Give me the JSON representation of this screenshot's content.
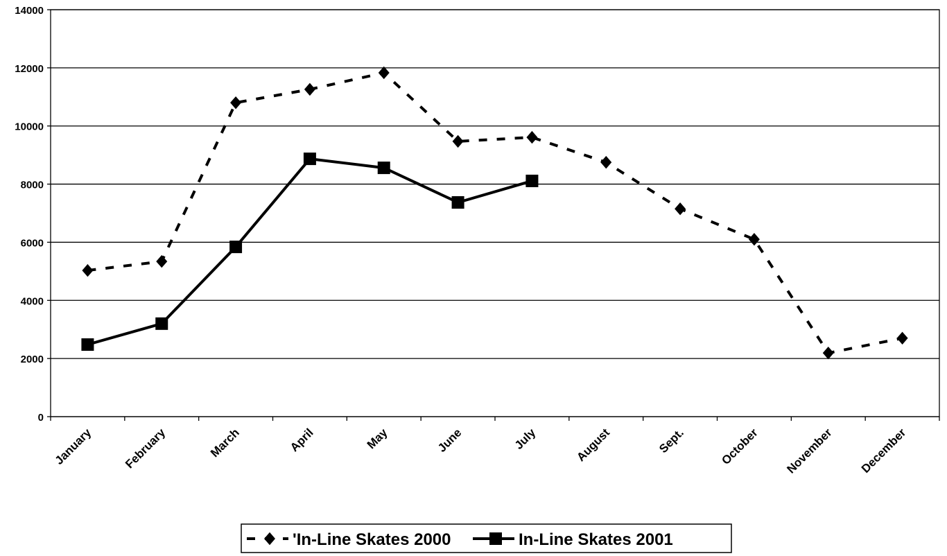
{
  "chart_data": {
    "type": "line",
    "categories": [
      "January",
      "February",
      "March",
      "April",
      "May",
      "June",
      "July",
      "August",
      "Sept.",
      "October",
      "November",
      "December"
    ],
    "series": [
      {
        "name": "'In-Line Skates 2000",
        "color": "#000000",
        "line_style": "dashed",
        "marker": "diamond",
        "values": [
          5030,
          5340,
          10800,
          11260,
          11830,
          9470,
          9610,
          8750,
          7150,
          6100,
          2190,
          2700
        ]
      },
      {
        "name": "In-Line Skates 2001",
        "color": "#000000",
        "line_style": "solid",
        "marker": "square",
        "values": [
          2480,
          3200,
          5840,
          8870,
          8560,
          7370,
          8110,
          null,
          null,
          null,
          null,
          null
        ]
      }
    ],
    "ylim": [
      0,
      14000
    ],
    "yticks": [
      0,
      2000,
      4000,
      6000,
      8000,
      10000,
      12000,
      14000
    ],
    "grid": true,
    "legend": "bottom"
  }
}
